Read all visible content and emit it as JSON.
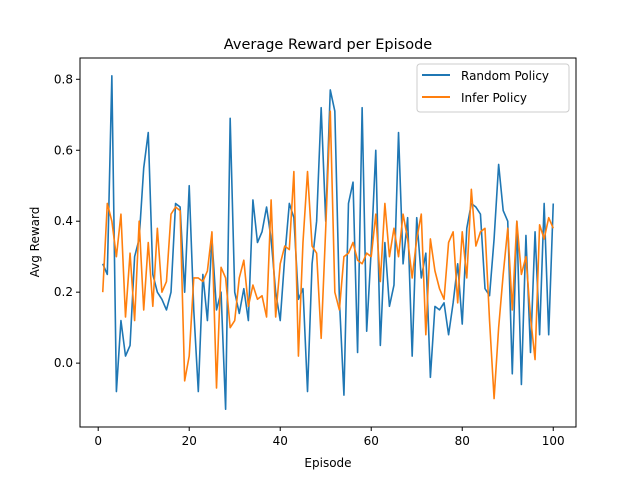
{
  "chart_data": {
    "type": "line",
    "title": "Average Reward per Episode",
    "xlabel": "Episode",
    "ylabel": "Avg Reward",
    "xlim": [
      -4,
      105
    ],
    "ylim": [
      -0.18,
      0.86
    ],
    "xticks": [
      0,
      20,
      40,
      60,
      80,
      100
    ],
    "yticks": [
      0.0,
      0.2,
      0.4,
      0.6,
      0.8
    ],
    "ytick_labels": [
      "0.0",
      "0.2",
      "0.4",
      "0.6",
      "0.8"
    ],
    "grid": false,
    "legend_position": "top-right",
    "x": [
      1,
      2,
      3,
      4,
      5,
      6,
      7,
      8,
      9,
      10,
      11,
      12,
      13,
      14,
      15,
      16,
      17,
      18,
      19,
      20,
      21,
      22,
      23,
      24,
      25,
      26,
      27,
      28,
      29,
      30,
      31,
      32,
      33,
      34,
      35,
      36,
      37,
      38,
      39,
      40,
      41,
      42,
      43,
      44,
      45,
      46,
      47,
      48,
      49,
      50,
      51,
      52,
      53,
      54,
      55,
      56,
      57,
      58,
      59,
      60,
      61,
      62,
      63,
      64,
      65,
      66,
      67,
      68,
      69,
      70,
      71,
      72,
      73,
      74,
      75,
      76,
      77,
      78,
      79,
      80,
      81,
      82,
      83,
      84,
      85,
      86,
      87,
      88,
      89,
      90,
      91,
      92,
      93,
      94,
      95,
      96,
      97,
      98,
      99,
      100
    ],
    "series": [
      {
        "name": "Random Policy",
        "color": "#1f77b4",
        "values": [
          0.28,
          0.25,
          0.81,
          -0.08,
          0.12,
          0.02,
          0.05,
          0.3,
          0.35,
          0.55,
          0.65,
          0.25,
          0.2,
          0.18,
          0.15,
          0.2,
          0.45,
          0.44,
          0.2,
          0.5,
          0.15,
          -0.08,
          0.25,
          0.12,
          0.35,
          0.15,
          0.2,
          -0.13,
          0.69,
          0.2,
          0.14,
          0.21,
          0.12,
          0.46,
          0.34,
          0.37,
          0.44,
          0.35,
          0.2,
          0.12,
          0.3,
          0.45,
          0.41,
          0.18,
          0.21,
          -0.08,
          0.28,
          0.4,
          0.72,
          0.4,
          0.77,
          0.71,
          0.18,
          -0.09,
          0.45,
          0.51,
          0.03,
          0.72,
          0.09,
          0.32,
          0.6,
          0.05,
          0.34,
          0.16,
          0.22,
          0.65,
          0.28,
          0.41,
          0.02,
          0.41,
          0.24,
          0.31,
          -0.04,
          0.16,
          0.15,
          0.17,
          0.08,
          0.17,
          0.28,
          0.11,
          0.38,
          0.45,
          0.44,
          0.42,
          0.21,
          0.19,
          0.35,
          0.56,
          0.43,
          0.4,
          -0.03,
          0.4,
          -0.06,
          0.36,
          0.03,
          0.37,
          0.08,
          0.45,
          0.08,
          0.45
        ]
      },
      {
        "name": "Infer Policy",
        "color": "#ff7f0e",
        "values": [
          0.2,
          0.45,
          0.4,
          0.3,
          0.42,
          0.13,
          0.31,
          0.12,
          0.4,
          0.15,
          0.34,
          0.16,
          0.38,
          0.2,
          0.23,
          0.42,
          0.44,
          0.43,
          -0.05,
          0.02,
          0.24,
          0.24,
          0.23,
          0.26,
          0.37,
          -0.07,
          0.27,
          0.24,
          0.1,
          0.12,
          0.24,
          0.29,
          0.16,
          0.22,
          0.18,
          0.19,
          0.13,
          0.46,
          0.13,
          0.28,
          0.33,
          0.32,
          0.54,
          0.02,
          0.34,
          0.54,
          0.33,
          0.31,
          0.07,
          0.38,
          0.71,
          0.2,
          0.15,
          0.3,
          0.31,
          0.34,
          0.29,
          0.28,
          0.31,
          0.3,
          0.42,
          0.23,
          0.45,
          0.3,
          0.38,
          0.3,
          0.42,
          0.35,
          0.24,
          0.35,
          0.42,
          0.08,
          0.35,
          0.26,
          0.21,
          0.18,
          0.34,
          0.37,
          0.17,
          0.37,
          0.24,
          0.49,
          0.33,
          0.37,
          0.38,
          0.12,
          -0.1,
          0.1,
          0.25,
          0.38,
          0.15,
          0.4,
          0.25,
          0.3,
          0.13,
          0.01,
          0.39,
          0.35,
          0.41,
          0.38
        ]
      }
    ]
  }
}
